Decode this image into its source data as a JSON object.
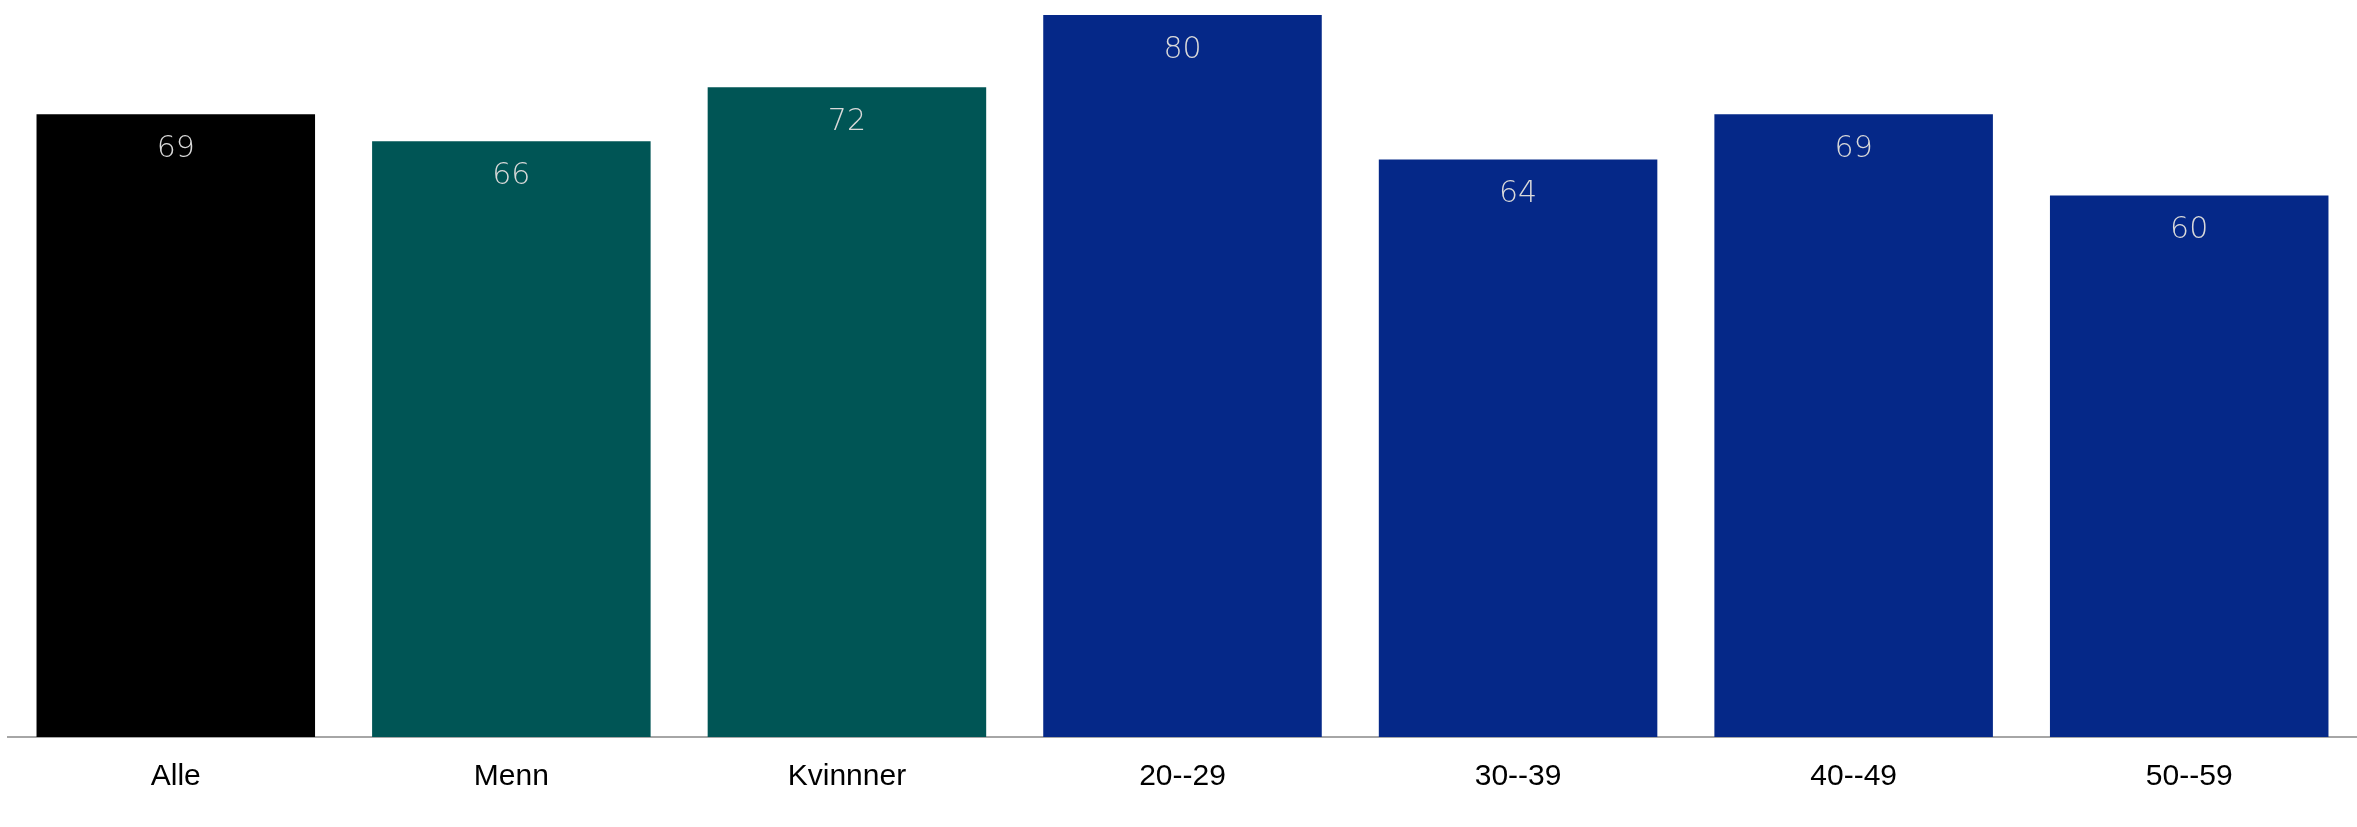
{
  "chart_data": {
    "type": "bar",
    "categories": [
      "Alle",
      "Menn",
      "Kvinnner",
      "20--29",
      "30--39",
      "40--49",
      "50--59"
    ],
    "values": [
      69,
      66,
      72,
      80,
      64,
      69,
      60
    ],
    "colors": [
      "#000000",
      "#005555",
      "#005555",
      "#052888",
      "#052888",
      "#052888",
      "#052888"
    ],
    "ylim": [
      0,
      80
    ],
    "data_labels": true,
    "grid": false,
    "legend": false
  }
}
